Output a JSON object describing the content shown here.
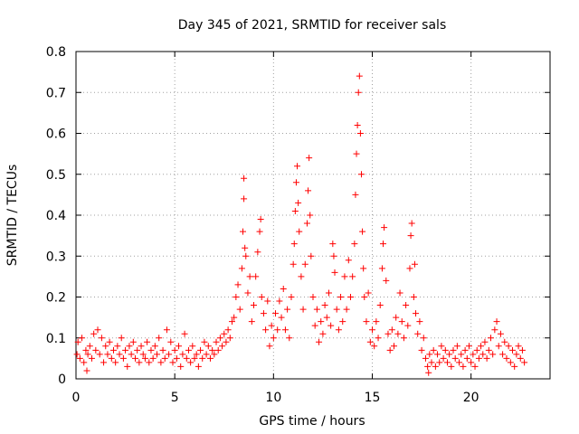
{
  "chart_data": {
    "type": "scatter",
    "title": "Day 345 of 2021, SRMTID for receiver sals",
    "xlabel": "GPS time / hours",
    "ylabel": "SRMTID / TECUs",
    "xlim": [
      0,
      24
    ],
    "ylim": [
      0,
      0.8
    ],
    "x_ticks": [
      0,
      5,
      10,
      15,
      20
    ],
    "x_tick_labels": [
      "0",
      "5",
      "10",
      "15",
      "20"
    ],
    "y_ticks": [
      0,
      0.1,
      0.2,
      0.3,
      0.4,
      0.5,
      0.6,
      0.7,
      0.8
    ],
    "y_tick_labels": [
      "0",
      "0.1",
      "0.2",
      "0.3",
      "0.4",
      "0.5",
      "0.6",
      "0.7",
      "0.8"
    ],
    "grid": true,
    "marker": "+",
    "color": "#ff0000",
    "series": [
      {
        "name": "SRMTID",
        "points": [
          [
            0.05,
            0.06
          ],
          [
            0.1,
            0.09
          ],
          [
            0.2,
            0.05
          ],
          [
            0.3,
            0.1
          ],
          [
            0.4,
            0.04
          ],
          [
            0.5,
            0.07
          ],
          [
            0.55,
            0.02
          ],
          [
            0.6,
            0.06
          ],
          [
            0.7,
            0.08
          ],
          [
            0.8,
            0.05
          ],
          [
            0.9,
            0.11
          ],
          [
            1.0,
            0.07
          ],
          [
            1.1,
            0.12
          ],
          [
            1.2,
            0.06
          ],
          [
            1.3,
            0.1
          ],
          [
            1.4,
            0.04
          ],
          [
            1.5,
            0.08
          ],
          [
            1.6,
            0.06
          ],
          [
            1.7,
            0.09
          ],
          [
            1.8,
            0.05
          ],
          [
            1.9,
            0.07
          ],
          [
            2.0,
            0.04
          ],
          [
            2.1,
            0.08
          ],
          [
            2.2,
            0.06
          ],
          [
            2.3,
            0.1
          ],
          [
            2.4,
            0.05
          ],
          [
            2.5,
            0.07
          ],
          [
            2.6,
            0.03
          ],
          [
            2.7,
            0.08
          ],
          [
            2.8,
            0.06
          ],
          [
            2.9,
            0.09
          ],
          [
            3.0,
            0.05
          ],
          [
            3.1,
            0.07
          ],
          [
            3.2,
            0.04
          ],
          [
            3.3,
            0.08
          ],
          [
            3.4,
            0.06
          ],
          [
            3.5,
            0.05
          ],
          [
            3.6,
            0.09
          ],
          [
            3.7,
            0.04
          ],
          [
            3.8,
            0.07
          ],
          [
            3.9,
            0.05
          ],
          [
            4.0,
            0.08
          ],
          [
            4.1,
            0.06
          ],
          [
            4.2,
            0.1
          ],
          [
            4.3,
            0.04
          ],
          [
            4.4,
            0.07
          ],
          [
            4.5,
            0.05
          ],
          [
            4.6,
            0.12
          ],
          [
            4.7,
            0.06
          ],
          [
            4.8,
            0.09
          ],
          [
            4.9,
            0.04
          ],
          [
            5.0,
            0.07
          ],
          [
            5.1,
            0.05
          ],
          [
            5.2,
            0.08
          ],
          [
            5.3,
            0.03
          ],
          [
            5.4,
            0.06
          ],
          [
            5.5,
            0.11
          ],
          [
            5.6,
            0.05
          ],
          [
            5.7,
            0.07
          ],
          [
            5.8,
            0.04
          ],
          [
            5.9,
            0.08
          ],
          [
            6.0,
            0.05
          ],
          [
            6.1,
            0.06
          ],
          [
            6.2,
            0.03
          ],
          [
            6.3,
            0.07
          ],
          [
            6.4,
            0.05
          ],
          [
            6.5,
            0.09
          ],
          [
            6.6,
            0.06
          ],
          [
            6.7,
            0.08
          ],
          [
            6.8,
            0.05
          ],
          [
            6.9,
            0.07
          ],
          [
            7.0,
            0.06
          ],
          [
            7.1,
            0.09
          ],
          [
            7.2,
            0.07
          ],
          [
            7.3,
            0.1
          ],
          [
            7.4,
            0.08
          ],
          [
            7.5,
            0.11
          ],
          [
            7.6,
            0.09
          ],
          [
            7.7,
            0.12
          ],
          [
            7.8,
            0.1
          ],
          [
            7.9,
            0.14
          ],
          [
            8.0,
            0.15
          ],
          [
            8.1,
            0.2
          ],
          [
            8.2,
            0.23
          ],
          [
            8.3,
            0.17
          ],
          [
            8.4,
            0.27
          ],
          [
            8.45,
            0.36
          ],
          [
            8.5,
            0.44
          ],
          [
            8.5,
            0.49
          ],
          [
            8.55,
            0.32
          ],
          [
            8.6,
            0.3
          ],
          [
            8.7,
            0.21
          ],
          [
            8.8,
            0.25
          ],
          [
            8.9,
            0.14
          ],
          [
            9.0,
            0.18
          ],
          [
            9.1,
            0.25
          ],
          [
            9.2,
            0.31
          ],
          [
            9.3,
            0.36
          ],
          [
            9.35,
            0.39
          ],
          [
            9.4,
            0.2
          ],
          [
            9.5,
            0.16
          ],
          [
            9.6,
            0.12
          ],
          [
            9.7,
            0.19
          ],
          [
            9.8,
            0.08
          ],
          [
            9.9,
            0.13
          ],
          [
            10.0,
            0.1
          ],
          [
            10.1,
            0.16
          ],
          [
            10.2,
            0.12
          ],
          [
            10.3,
            0.19
          ],
          [
            10.4,
            0.15
          ],
          [
            10.5,
            0.22
          ],
          [
            10.6,
            0.12
          ],
          [
            10.7,
            0.17
          ],
          [
            10.8,
            0.1
          ],
          [
            10.9,
            0.2
          ],
          [
            11.0,
            0.28
          ],
          [
            11.05,
            0.33
          ],
          [
            11.1,
            0.41
          ],
          [
            11.15,
            0.48
          ],
          [
            11.2,
            0.52
          ],
          [
            11.25,
            0.43
          ],
          [
            11.3,
            0.36
          ],
          [
            11.4,
            0.25
          ],
          [
            11.5,
            0.17
          ],
          [
            11.6,
            0.28
          ],
          [
            11.7,
            0.38
          ],
          [
            11.75,
            0.46
          ],
          [
            11.8,
            0.54
          ],
          [
            11.85,
            0.4
          ],
          [
            11.9,
            0.3
          ],
          [
            12.0,
            0.2
          ],
          [
            12.1,
            0.13
          ],
          [
            12.2,
            0.17
          ],
          [
            12.3,
            0.09
          ],
          [
            12.4,
            0.14
          ],
          [
            12.5,
            0.11
          ],
          [
            12.6,
            0.18
          ],
          [
            12.7,
            0.15
          ],
          [
            12.8,
            0.21
          ],
          [
            12.9,
            0.13
          ],
          [
            13.0,
            0.33
          ],
          [
            13.05,
            0.3
          ],
          [
            13.1,
            0.26
          ],
          [
            13.2,
            0.17
          ],
          [
            13.3,
            0.12
          ],
          [
            13.4,
            0.2
          ],
          [
            13.5,
            0.14
          ],
          [
            13.6,
            0.25
          ],
          [
            13.7,
            0.17
          ],
          [
            13.8,
            0.29
          ],
          [
            13.9,
            0.2
          ],
          [
            14.0,
            0.25
          ],
          [
            14.1,
            0.33
          ],
          [
            14.15,
            0.45
          ],
          [
            14.2,
            0.55
          ],
          [
            14.25,
            0.62
          ],
          [
            14.3,
            0.7
          ],
          [
            14.35,
            0.74
          ],
          [
            14.4,
            0.6
          ],
          [
            14.45,
            0.5
          ],
          [
            14.5,
            0.36
          ],
          [
            14.55,
            0.27
          ],
          [
            14.6,
            0.2
          ],
          [
            14.7,
            0.14
          ],
          [
            14.8,
            0.21
          ],
          [
            14.9,
            0.09
          ],
          [
            15.0,
            0.12
          ],
          [
            15.1,
            0.08
          ],
          [
            15.2,
            0.14
          ],
          [
            15.3,
            0.1
          ],
          [
            15.4,
            0.18
          ],
          [
            15.5,
            0.27
          ],
          [
            15.55,
            0.33
          ],
          [
            15.6,
            0.37
          ],
          [
            15.7,
            0.24
          ],
          [
            15.8,
            0.11
          ],
          [
            15.9,
            0.07
          ],
          [
            16.0,
            0.12
          ],
          [
            16.1,
            0.08
          ],
          [
            16.2,
            0.15
          ],
          [
            16.3,
            0.11
          ],
          [
            16.4,
            0.21
          ],
          [
            16.5,
            0.14
          ],
          [
            16.6,
            0.1
          ],
          [
            16.7,
            0.18
          ],
          [
            16.8,
            0.13
          ],
          [
            16.9,
            0.27
          ],
          [
            16.95,
            0.35
          ],
          [
            17.0,
            0.38
          ],
          [
            17.1,
            0.2
          ],
          [
            17.15,
            0.28
          ],
          [
            17.2,
            0.16
          ],
          [
            17.3,
            0.11
          ],
          [
            17.4,
            0.14
          ],
          [
            17.5,
            0.07
          ],
          [
            17.6,
            0.1
          ],
          [
            17.7,
            0.05
          ],
          [
            17.8,
            0.03
          ],
          [
            17.85,
            0.015
          ],
          [
            17.9,
            0.06
          ],
          [
            18.0,
            0.04
          ],
          [
            18.1,
            0.07
          ],
          [
            18.2,
            0.03
          ],
          [
            18.3,
            0.06
          ],
          [
            18.4,
            0.04
          ],
          [
            18.5,
            0.08
          ],
          [
            18.6,
            0.05
          ],
          [
            18.7,
            0.07
          ],
          [
            18.8,
            0.04
          ],
          [
            18.9,
            0.06
          ],
          [
            19.0,
            0.03
          ],
          [
            19.1,
            0.07
          ],
          [
            19.2,
            0.05
          ],
          [
            19.3,
            0.08
          ],
          [
            19.4,
            0.04
          ],
          [
            19.5,
            0.06
          ],
          [
            19.6,
            0.03
          ],
          [
            19.7,
            0.07
          ],
          [
            19.8,
            0.05
          ],
          [
            19.9,
            0.08
          ],
          [
            20.0,
            0.04
          ],
          [
            20.1,
            0.06
          ],
          [
            20.2,
            0.03
          ],
          [
            20.3,
            0.07
          ],
          [
            20.4,
            0.05
          ],
          [
            20.5,
            0.08
          ],
          [
            20.6,
            0.06
          ],
          [
            20.7,
            0.09
          ],
          [
            20.8,
            0.05
          ],
          [
            20.9,
            0.07
          ],
          [
            21.0,
            0.1
          ],
          [
            21.1,
            0.06
          ],
          [
            21.2,
            0.12
          ],
          [
            21.3,
            0.14
          ],
          [
            21.4,
            0.08
          ],
          [
            21.5,
            0.11
          ],
          [
            21.6,
            0.06
          ],
          [
            21.7,
            0.09
          ],
          [
            21.8,
            0.05
          ],
          [
            21.9,
            0.08
          ],
          [
            22.0,
            0.04
          ],
          [
            22.1,
            0.07
          ],
          [
            22.2,
            0.03
          ],
          [
            22.3,
            0.06
          ],
          [
            22.4,
            0.08
          ],
          [
            22.5,
            0.05
          ],
          [
            22.6,
            0.07
          ],
          [
            22.7,
            0.04
          ]
        ]
      }
    ]
  }
}
